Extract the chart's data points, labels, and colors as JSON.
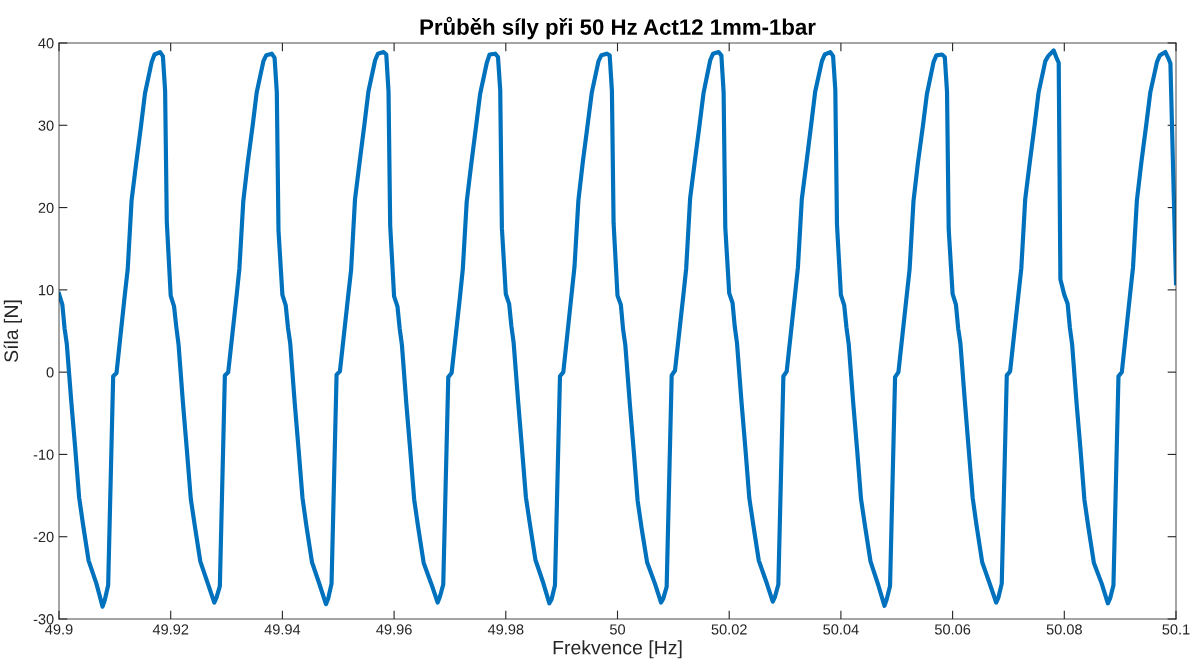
{
  "chart_data": {
    "type": "line",
    "title": "Průběh síly při 50 Hz Act12 1mm-1bar",
    "xlabel": "Frekvence [Hz]",
    "ylabel": "Síla [N]",
    "xlim": [
      49.9,
      50.1
    ],
    "xticks": [
      49.9,
      49.92,
      49.94,
      49.96,
      49.98,
      50,
      50.02,
      50.04,
      50.06,
      50.08,
      50.1
    ],
    "ylim": [
      -30,
      40
    ],
    "yticks": [
      -30,
      -20,
      -10,
      0,
      10,
      20,
      30,
      40
    ],
    "grid": false,
    "legend": false,
    "marker": "none",
    "line_style": "solid",
    "series": [
      {
        "color": "#0072bd",
        "x": [
          49.9,
          49.9006,
          49.901,
          49.9014,
          49.9022,
          49.9029,
          49.9036,
          49.9043,
          49.9053,
          49.9067,
          49.9078,
          49.9082,
          49.9088,
          49.9097,
          49.9103,
          49.9118,
          49.9123,
          49.913,
          49.9138,
          49.9147,
          49.9154,
          49.9166,
          49.9171,
          49.9181,
          49.9186,
          49.919,
          49.9193,
          49.92,
          49.9206,
          49.921,
          49.9214,
          49.9222,
          49.9229,
          49.9236,
          49.9243,
          49.9253,
          49.9267,
          49.9278,
          49.9282,
          49.9288,
          49.9297,
          49.9303,
          49.9318,
          49.9323,
          49.933,
          49.9338,
          49.9347,
          49.9354,
          49.9366,
          49.9371,
          49.9381,
          49.9386,
          49.939,
          49.9393,
          49.94,
          49.9406,
          49.941,
          49.9414,
          49.9422,
          49.9429,
          49.9436,
          49.9443,
          49.9453,
          49.9467,
          49.9478,
          49.9482,
          49.9488,
          49.9497,
          49.9503,
          49.9518,
          49.9523,
          49.953,
          49.9538,
          49.9547,
          49.9554,
          49.9566,
          49.9571,
          49.9581,
          49.9586,
          49.959,
          49.9593,
          49.96,
          49.9606,
          49.961,
          49.9614,
          49.9622,
          49.9629,
          49.9636,
          49.9643,
          49.9653,
          49.9667,
          49.9678,
          49.9682,
          49.9688,
          49.9697,
          49.9703,
          49.9718,
          49.9723,
          49.973,
          49.9738,
          49.9747,
          49.9754,
          49.9766,
          49.9771,
          49.9781,
          49.9786,
          49.979,
          49.9793,
          49.98,
          49.9806,
          49.981,
          49.9814,
          49.9822,
          49.9829,
          49.9836,
          49.9843,
          49.9853,
          49.9867,
          49.9878,
          49.9882,
          49.9888,
          49.9897,
          49.9903,
          49.9918,
          49.9923,
          49.993,
          49.9938,
          49.9947,
          49.9954,
          49.9966,
          49.9971,
          49.9981,
          49.9986,
          49.999,
          49.9993,
          50,
          50.0006,
          50.001,
          50.0014,
          50.0022,
          50.0029,
          50.0036,
          50.0043,
          50.0053,
          50.0067,
          50.0078,
          50.0082,
          50.0088,
          50.0097,
          50.0103,
          50.0118,
          50.0123,
          50.013,
          50.0138,
          50.0147,
          50.0154,
          50.0166,
          50.0171,
          50.0181,
          50.0186,
          50.019,
          50.0193,
          50.02,
          50.0206,
          50.021,
          50.0214,
          50.0222,
          50.0229,
          50.0236,
          50.0243,
          50.0253,
          50.0267,
          50.0278,
          50.0282,
          50.0288,
          50.0297,
          50.0303,
          50.0318,
          50.0323,
          50.033,
          50.0338,
          50.0347,
          50.0354,
          50.0366,
          50.0371,
          50.0381,
          50.0386,
          50.039,
          50.0393,
          50.04,
          50.0406,
          50.041,
          50.0414,
          50.0422,
          50.0429,
          50.0436,
          50.0443,
          50.0453,
          50.0467,
          50.0478,
          50.0482,
          50.0488,
          50.0497,
          50.0503,
          50.0518,
          50.0523,
          50.053,
          50.0538,
          50.0547,
          50.0554,
          50.0566,
          50.0571,
          50.0581,
          50.0586,
          50.059,
          50.0593,
          50.06,
          50.0606,
          50.061,
          50.0614,
          50.0622,
          50.0629,
          50.0636,
          50.0643,
          50.0653,
          50.0667,
          50.0678,
          50.0682,
          50.0688,
          50.0697,
          50.0703,
          50.0718,
          50.0723,
          50.073,
          50.0738,
          50.0747,
          50.0754,
          50.0766,
          50.0771,
          50.0781,
          50.0786,
          50.079,
          50.0793,
          50.08,
          50.0806,
          50.081,
          50.0814,
          50.0822,
          50.0829,
          50.0836,
          50.0843,
          50.0853,
          50.0867,
          50.0878,
          50.0882,
          50.0888,
          50.0897,
          50.0903,
          50.0918,
          50.0923,
          50.093,
          50.0938,
          50.0947,
          50.0954,
          50.0966,
          50.0971,
          50.0981,
          50.0986,
          50.099,
          50.1
        ],
        "values": [
          9.5,
          8.2,
          5.3,
          3.4,
          -3.6,
          -9.2,
          -15.2,
          -18.5,
          -22.9,
          -25.7,
          -28.5,
          -27.7,
          -25.9,
          -0.5,
          -0.1,
          9.5,
          12.5,
          20.9,
          25.3,
          30.0,
          33.9,
          37.7,
          38.6,
          38.9,
          38.4,
          34.2,
          18.3,
          9.3,
          8.0,
          5.5,
          3.4,
          -3.8,
          -9.5,
          -15.4,
          -18.6,
          -23.0,
          -25.8,
          -28.0,
          -27.4,
          -26.0,
          -0.4,
          0.0,
          9.3,
          12.6,
          20.8,
          25.5,
          30.1,
          34.0,
          37.8,
          38.5,
          38.7,
          38.2,
          34.0,
          17.2,
          9.4,
          8.1,
          5.4,
          3.5,
          -3.7,
          -9.4,
          -15.3,
          -18.7,
          -23.1,
          -25.9,
          -28.2,
          -27.5,
          -25.7,
          -0.3,
          0.1,
          9.4,
          12.4,
          21.0,
          25.4,
          30.2,
          34.1,
          37.9,
          38.7,
          38.9,
          38.6,
          34.1,
          17.8,
          9.2,
          8.0,
          5.3,
          3.3,
          -3.9,
          -9.6,
          -15.5,
          -18.8,
          -23.2,
          -25.8,
          -28.0,
          -27.3,
          -25.8,
          -0.6,
          -0.1,
          9.2,
          12.5,
          20.7,
          25.2,
          30.0,
          33.8,
          37.6,
          38.6,
          38.7,
          38.3,
          34.3,
          17.5,
          9.5,
          8.3,
          5.6,
          3.6,
          -3.5,
          -9.3,
          -15.2,
          -18.4,
          -22.8,
          -25.6,
          -28.1,
          -27.6,
          -25.9,
          -0.5,
          0.0,
          9.6,
          12.8,
          20.9,
          25.6,
          30.3,
          34.0,
          37.8,
          38.5,
          38.7,
          38.5,
          34.2,
          18.1,
          9.3,
          8.2,
          5.2,
          3.3,
          -3.8,
          -9.5,
          -15.6,
          -18.9,
          -23.1,
          -25.7,
          -28.0,
          -27.5,
          -26.1,
          -0.4,
          0.2,
          9.4,
          12.6,
          21.1,
          25.4,
          30.1,
          33.9,
          37.9,
          38.7,
          38.9,
          38.5,
          34.0,
          17.6,
          9.6,
          8.4,
          5.5,
          3.5,
          -3.6,
          -9.3,
          -15.3,
          -18.5,
          -22.9,
          -25.6,
          -27.9,
          -27.3,
          -25.8,
          -0.5,
          0.1,
          9.5,
          12.7,
          21.0,
          25.3,
          30.2,
          34.1,
          37.8,
          38.6,
          38.9,
          38.4,
          34.3,
          17.9,
          9.4,
          8.1,
          5.4,
          3.4,
          -3.7,
          -9.4,
          -15.4,
          -18.6,
          -23.0,
          -25.9,
          -28.4,
          -27.6,
          -26.0,
          -0.6,
          0.0,
          9.4,
          12.5,
          20.8,
          25.5,
          30.0,
          33.8,
          37.7,
          38.5,
          38.6,
          38.3,
          34.1,
          17.4,
          9.5,
          8.2,
          5.3,
          3.5,
          -3.6,
          -9.5,
          -15.3,
          -18.7,
          -23.1,
          -25.8,
          -28.0,
          -27.4,
          -25.7,
          -0.4,
          0.1,
          9.5,
          12.6,
          21.0,
          25.4,
          30.1,
          34.0,
          37.8,
          38.4,
          39.1,
          38.2,
          37.6,
          11.3,
          9.4,
          8.3,
          5.4,
          3.4,
          -3.8,
          -9.4,
          -15.5,
          -18.8,
          -23.2,
          -25.7,
          -28.1,
          -27.5,
          -25.9,
          -0.5,
          0.0,
          9.6,
          12.7,
          20.9,
          25.5,
          30.2,
          34.0,
          37.7,
          38.5,
          38.9,
          38.2,
          37.5,
          10.8
        ]
      }
    ]
  }
}
